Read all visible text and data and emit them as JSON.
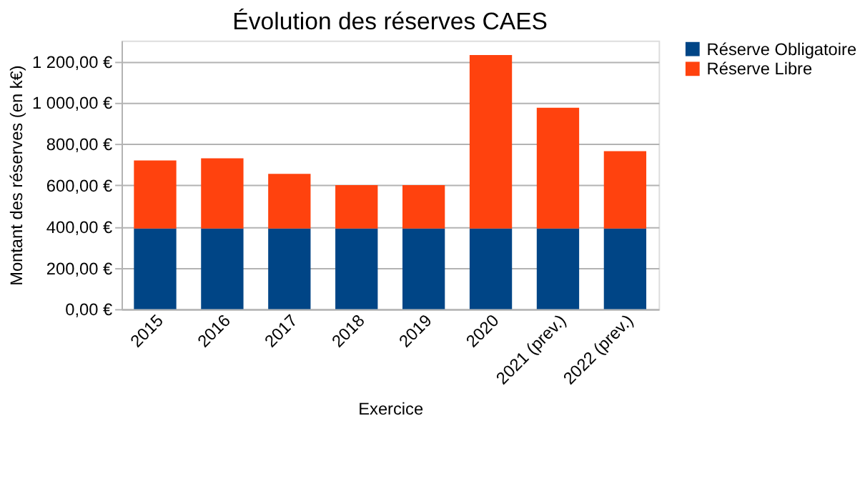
{
  "chart_data": {
    "type": "bar",
    "title": "Évolution des réserves CAES",
    "xlabel": "Exercice",
    "ylabel": "Montant des réserves (en k€)",
    "categories": [
      "2015",
      "2016",
      "2017",
      "2018",
      "2019",
      "2020",
      "2021 (prev.)",
      "2022 (prev.)"
    ],
    "stacked": true,
    "series": [
      {
        "name": "Réserve Obligatoire",
        "color": "#004586",
        "values": [
          390,
          390,
          390,
          390,
          390,
          390,
          390,
          390
        ]
      },
      {
        "name": "Réserve Libre",
        "color": "#ff420e",
        "values": [
          330,
          340,
          265,
          210,
          210,
          840,
          585,
          375
        ]
      }
    ],
    "ylim": [
      0,
      1300
    ],
    "yticks": [
      {
        "value": 0,
        "label": "0,00 €"
      },
      {
        "value": 200,
        "label": "200,00 €"
      },
      {
        "value": 400,
        "label": "400,00 €"
      },
      {
        "value": 600,
        "label": "600,00 €"
      },
      {
        "value": 800,
        "label": "800,00 €"
      },
      {
        "value": 1000,
        "label": "1 000,00 €"
      },
      {
        "value": 1200,
        "label": "1 200,00 €"
      }
    ],
    "grid": "y",
    "legend": "right"
  }
}
